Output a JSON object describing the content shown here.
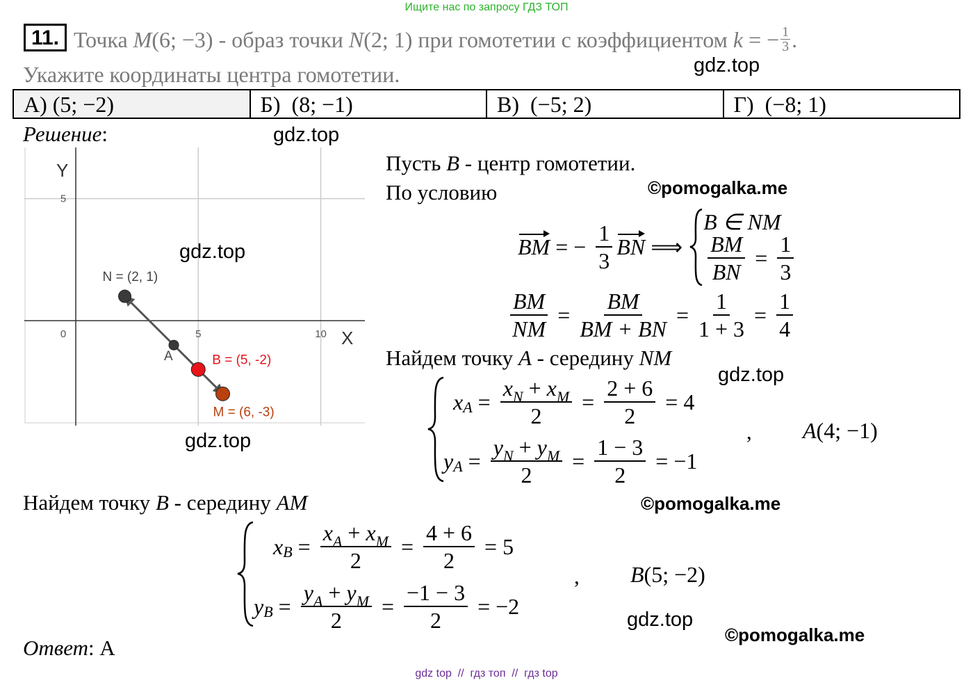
{
  "banner": "Ищите нас по запросу ГДЗ ТОП",
  "problem": {
    "number": "11.",
    "line1": [
      "Точка ",
      "M",
      "(6; −3) - образ точки ",
      "N",
      "(2; 1) при гомотетии с коэффициентом ",
      "k",
      " = −",
      "1",
      "3",
      "."
    ],
    "line2": "Укажите координаты центра гомотетии."
  },
  "options": [
    "А) (5; −2)",
    "Б)  (8; −1)",
    "В)  (−5; 2)",
    "Г)  (−8; 1)"
  ],
  "graph": {
    "x_label": "X",
    "y_label": "Y",
    "origin_label": "0",
    "xlim": [
      -2.1,
      11.8
    ],
    "ylim": [
      -4.3,
      7.1
    ],
    "xticks": [
      5,
      10
    ],
    "yticks": [
      5
    ],
    "points": [
      {
        "label": "N = (2, 1)",
        "x": 2,
        "y": 1,
        "color": "#3a3a3a"
      },
      {
        "label": "A",
        "x": 4,
        "y": -1,
        "color": "#3a3a3a"
      },
      {
        "label": "B = (5, -2)",
        "x": 5,
        "y": -2,
        "color": "#e8141a"
      },
      {
        "label": "M = (6, -3)",
        "x": 6,
        "y": -3,
        "color": "#b8410f"
      }
    ]
  },
  "solution": {
    "heading": [
      "Решение",
      ":"
    ],
    "line1": [
      "Пусть ",
      "B",
      " - центр гомотетии."
    ],
    "line2": "По условию",
    "f1": [
      "BM",
      "= −",
      "1",
      "3",
      "BN",
      "⟹",
      "B ∈ NM",
      "BM",
      "BN",
      "=",
      "1",
      "3"
    ],
    "f2": [
      "BM",
      "NM",
      "=",
      "BM",
      "BM + BN",
      "=",
      "1",
      "1 + 3",
      "=",
      "1",
      "4"
    ],
    "line3": [
      "Найдем точку ",
      "A",
      " - середину ",
      "NM"
    ],
    "sysA_x": [
      "x",
      "A",
      "=",
      "x",
      "N",
      " + ",
      "x",
      "M",
      "2",
      "=",
      "2 + 6",
      "2",
      "= 4"
    ],
    "sysA_y": [
      "y",
      "A",
      "=",
      "y",
      "N",
      " + ",
      "y",
      "M",
      "2",
      "=",
      "1 − 3",
      "2",
      "= −1"
    ],
    "sysA_comma": ",",
    "sysA_result": [
      "A",
      "(4; −1)"
    ],
    "line4": [
      "Найдем точку ",
      "B",
      " - середину ",
      "AM"
    ],
    "sysB_x": [
      "x",
      "B",
      "=",
      "x",
      "A",
      " + ",
      "x",
      "M",
      "2",
      "=",
      "4 + 6",
      "2",
      "= 5"
    ],
    "sysB_y": [
      "y",
      "B",
      "=",
      "y",
      "A",
      " + ",
      "y",
      "M",
      "2",
      "=",
      "−1 − 3",
      "2",
      "= −2"
    ],
    "sysB_comma": ",",
    "sysB_result": [
      "B",
      "(5; −2)"
    ],
    "answer": [
      "Ответ",
      ": А"
    ]
  },
  "watermarks": [
    "gdz.top",
    "gdz.top",
    "gdz.top",
    "gdz.top",
    "gdz.top",
    "gdz.top"
  ],
  "copyrights": [
    "©pomogalka.me",
    "©pomogalka.me",
    "©pomogalka.me"
  ],
  "footer": "gdz top  //  гдз топ  //  гдз top"
}
